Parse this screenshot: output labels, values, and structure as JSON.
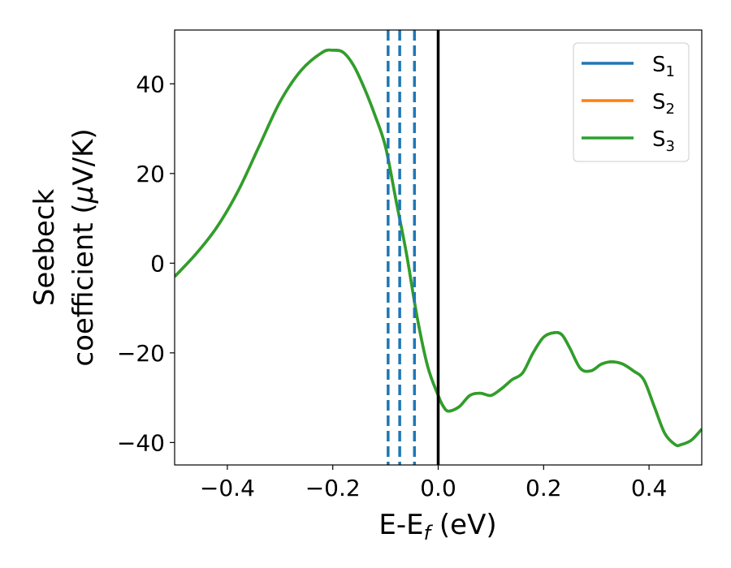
{
  "chart_data": {
    "type": "line",
    "xlabel": "E-E",
    "xlabel_sub": "f",
    "xlabel_unit": " (eV)",
    "ylabel_line1": "Seebeck",
    "ylabel_line2_prefix": "coefficient  (",
    "ylabel_line2_mu": "μ",
    "ylabel_line2_suffix": "V/K)",
    "xlim": [
      -0.5,
      0.5
    ],
    "ylim": [
      -45,
      52
    ],
    "xticks": [
      -0.4,
      -0.2,
      0.0,
      0.2,
      0.4
    ],
    "xtick_labels": [
      "−0.4",
      "−0.2",
      "0.0",
      "0.2",
      "0.4"
    ],
    "yticks": [
      -40,
      -20,
      0,
      20,
      40
    ],
    "ytick_labels": [
      "−40",
      "−20",
      "0",
      "20",
      "40"
    ],
    "grid": false,
    "legend_position": "top-right",
    "vlines_dashed": [
      -0.095,
      -0.073,
      -0.045
    ],
    "vline_dashed_color": "#1f77b4",
    "vline_solid": 0.0,
    "vline_solid_color": "#000000",
    "series": [
      {
        "name": "S",
        "sub": "1",
        "color": "#1f77b4"
      },
      {
        "name": "S",
        "sub": "2",
        "color": "#ff7f0e"
      },
      {
        "name": "S",
        "sub": "3",
        "color": "#2ca02c"
      }
    ],
    "x": [
      -0.5,
      -0.46,
      -0.42,
      -0.38,
      -0.34,
      -0.3,
      -0.26,
      -0.22,
      -0.2,
      -0.18,
      -0.16,
      -0.14,
      -0.12,
      -0.1,
      -0.08,
      -0.06,
      -0.04,
      -0.02,
      0.0,
      0.01,
      0.02,
      0.04,
      0.06,
      0.08,
      0.1,
      0.12,
      0.14,
      0.16,
      0.18,
      0.2,
      0.22,
      0.235,
      0.25,
      0.27,
      0.29,
      0.31,
      0.33,
      0.35,
      0.37,
      0.39,
      0.41,
      0.43,
      0.45,
      0.46,
      0.48,
      0.5
    ],
    "y": [
      -3,
      2,
      8,
      16,
      26,
      36,
      43,
      47,
      47.5,
      47,
      44,
      39,
      33,
      26,
      14,
      2,
      -12,
      -23,
      -29.5,
      -32,
      -33,
      -32,
      -29.5,
      -29,
      -29.5,
      -28,
      -26,
      -24.5,
      -20,
      -16.5,
      -15.5,
      -16,
      -19,
      -23.5,
      -24,
      -22.5,
      -22,
      -22.5,
      -24,
      -26,
      -32,
      -38,
      -40.5,
      -40.5,
      -39.5,
      -37
    ]
  }
}
